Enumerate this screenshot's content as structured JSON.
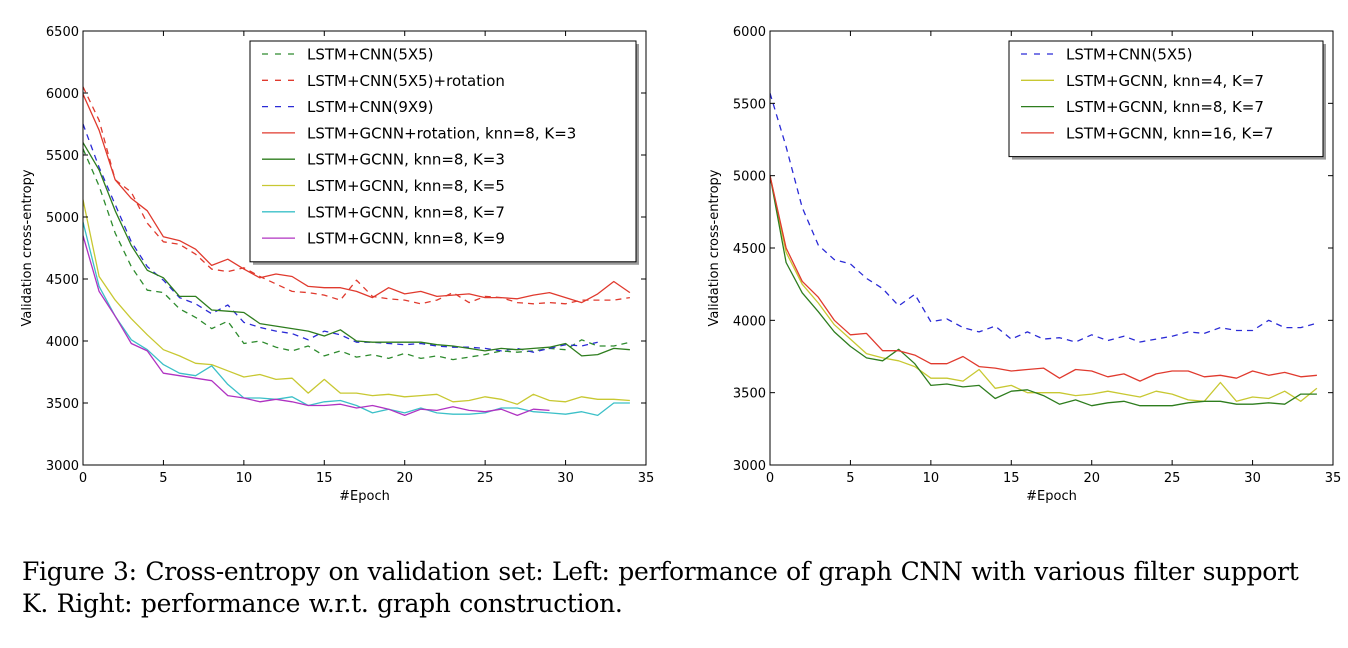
{
  "caption": "Figure 3: Cross-entropy on validation set: Left: performance of graph CNN with various filter support K. Right: performance w.r.t. graph construction.",
  "chart_data": [
    {
      "type": "line",
      "xlabel": "#Epoch",
      "ylabel": "Validation cross-entropy",
      "xlim": [
        0,
        35
      ],
      "ylim": [
        3000,
        6500
      ],
      "xticks": [
        0,
        5,
        10,
        15,
        20,
        25,
        30,
        35
      ],
      "yticks": [
        3000,
        3500,
        4000,
        4500,
        5000,
        5500,
        6000,
        6500
      ],
      "grid": false,
      "legend_position": "top-right",
      "series": [
        {
          "name": "LSTM+CNN(5X5)",
          "color": "#2e8b2e",
          "dash": true,
          "x": [
            0,
            1,
            2,
            3,
            4,
            5,
            6,
            7,
            8,
            9,
            10,
            11,
            12,
            13,
            14,
            15,
            16,
            17,
            18,
            19,
            20,
            21,
            22,
            23,
            24,
            25,
            26,
            27,
            28,
            29,
            30,
            31,
            32,
            33,
            34
          ],
          "y": [
            5550,
            5250,
            4870,
            4600,
            4410,
            4390,
            4260,
            4190,
            4100,
            4160,
            3980,
            4000,
            3950,
            3920,
            3960,
            3880,
            3920,
            3870,
            3890,
            3860,
            3900,
            3860,
            3880,
            3850,
            3870,
            3890,
            3920,
            3910,
            3920,
            3940,
            3930,
            4010,
            3960,
            3960,
            3990
          ]
        },
        {
          "name": "LSTM+CNN(5X5)+rotation",
          "color": "#e03a2e",
          "dash": true,
          "x": [
            0,
            1,
            2,
            3,
            4,
            5,
            6,
            7,
            8,
            9,
            10,
            11,
            12,
            13,
            14,
            15,
            16,
            17,
            18,
            19,
            20,
            21,
            22,
            23,
            24,
            25,
            26,
            27,
            28,
            29,
            30,
            31,
            32,
            33,
            34
          ],
          "y": [
            6050,
            5780,
            5300,
            5200,
            4950,
            4800,
            4780,
            4700,
            4580,
            4560,
            4590,
            4520,
            4460,
            4400,
            4390,
            4370,
            4330,
            4490,
            4360,
            4340,
            4330,
            4300,
            4330,
            4390,
            4310,
            4360,
            4350,
            4310,
            4300,
            4310,
            4300,
            4330,
            4330,
            4330,
            4350
          ]
        },
        {
          "name": "LSTM+CNN(9X9)",
          "color": "#2b2bd6",
          "dash": true,
          "x": [
            0,
            1,
            2,
            3,
            4,
            5,
            6,
            7,
            8,
            9,
            10,
            11,
            12,
            13,
            14,
            15,
            16,
            17,
            18,
            19,
            20,
            21,
            22,
            23,
            24,
            25,
            26,
            27,
            28,
            29,
            30,
            31,
            32
          ],
          "y": [
            5750,
            5400,
            5100,
            4800,
            4600,
            4490,
            4350,
            4300,
            4220,
            4290,
            4150,
            4110,
            4080,
            4060,
            4010,
            4080,
            4050,
            3990,
            3990,
            3980,
            3970,
            3980,
            3960,
            3950,
            3950,
            3940,
            3920,
            3940,
            3910,
            3940,
            3970,
            3960,
            3990
          ]
        },
        {
          "name": "LSTM+GCNN+rotation, knn=8, K=3",
          "color": "#e03a2e",
          "dash": false,
          "x": [
            0,
            1,
            2,
            3,
            4,
            5,
            6,
            7,
            8,
            9,
            10,
            11,
            12,
            13,
            14,
            15,
            16,
            17,
            18,
            19,
            20,
            21,
            22,
            23,
            24,
            25,
            26,
            27,
            28,
            29,
            30,
            31,
            32,
            33,
            34
          ],
          "y": [
            5990,
            5700,
            5300,
            5150,
            5050,
            4840,
            4810,
            4740,
            4610,
            4660,
            4580,
            4510,
            4540,
            4520,
            4440,
            4430,
            4430,
            4400,
            4350,
            4430,
            4380,
            4400,
            4360,
            4370,
            4380,
            4350,
            4350,
            4340,
            4370,
            4390,
            4350,
            4310,
            4380,
            4480,
            4390
          ]
        },
        {
          "name": "LSTM+GCNN, knn=8, K=3",
          "color": "#2e7d1e",
          "dash": false,
          "x": [
            0,
            1,
            2,
            3,
            4,
            5,
            6,
            7,
            8,
            9,
            10,
            11,
            12,
            13,
            14,
            15,
            16,
            17,
            18,
            19,
            20,
            21,
            22,
            23,
            24,
            25,
            26,
            27,
            28,
            29,
            30,
            31,
            32,
            33,
            34
          ],
          "y": [
            5600,
            5380,
            5050,
            4770,
            4570,
            4510,
            4360,
            4360,
            4250,
            4240,
            4230,
            4140,
            4120,
            4100,
            4080,
            4040,
            4090,
            4000,
            3990,
            3990,
            3990,
            3990,
            3970,
            3960,
            3940,
            3920,
            3940,
            3930,
            3940,
            3950,
            3980,
            3880,
            3890,
            3940,
            3930
          ]
        },
        {
          "name": "LSTM+GCNN, knn=8, K=5",
          "color": "#c8c832",
          "dash": false,
          "x": [
            0,
            1,
            2,
            3,
            4,
            5,
            6,
            7,
            8,
            9,
            10,
            11,
            12,
            13,
            14,
            15,
            16,
            17,
            18,
            19,
            20,
            21,
            22,
            23,
            24,
            25,
            26,
            27,
            28,
            29,
            30,
            31,
            32,
            33,
            34
          ],
          "y": [
            5140,
            4520,
            4330,
            4180,
            4050,
            3930,
            3880,
            3820,
            3810,
            3760,
            3710,
            3730,
            3690,
            3700,
            3580,
            3690,
            3580,
            3580,
            3560,
            3570,
            3550,
            3560,
            3570,
            3510,
            3520,
            3550,
            3530,
            3490,
            3570,
            3520,
            3510,
            3550,
            3530,
            3530,
            3520
          ]
        },
        {
          "name": "LSTM+GCNN, knn=8, K=7",
          "color": "#3cc0c8",
          "dash": false,
          "x": [
            0,
            1,
            2,
            3,
            4,
            5,
            6,
            7,
            8,
            9,
            10,
            11,
            12,
            13,
            14,
            15,
            16,
            17,
            18,
            19,
            20,
            21,
            22,
            23,
            24,
            25,
            26,
            27,
            28,
            29,
            30,
            31,
            32,
            33,
            34
          ],
          "y": [
            4960,
            4440,
            4200,
            4010,
            3930,
            3810,
            3740,
            3720,
            3800,
            3650,
            3540,
            3540,
            3530,
            3550,
            3480,
            3510,
            3520,
            3480,
            3420,
            3450,
            3420,
            3460,
            3420,
            3410,
            3410,
            3420,
            3460,
            3460,
            3430,
            3420,
            3410,
            3430,
            3400,
            3500,
            3500
          ]
        },
        {
          "name": "LSTM+GCNN, knn=8, K=9",
          "color": "#b033c2",
          "dash": false,
          "x": [
            0,
            1,
            2,
            3,
            4,
            5,
            6,
            7,
            8,
            9,
            10,
            11,
            12,
            13,
            14,
            15,
            16,
            17,
            18,
            19,
            20,
            21,
            22,
            23,
            24,
            25,
            26,
            27,
            28,
            29
          ],
          "y": [
            4850,
            4400,
            4200,
            3980,
            3920,
            3740,
            3720,
            3700,
            3680,
            3560,
            3540,
            3510,
            3530,
            3510,
            3480,
            3480,
            3490,
            3460,
            3480,
            3450,
            3400,
            3450,
            3440,
            3470,
            3440,
            3430,
            3450,
            3400,
            3450,
            3440
          ]
        }
      ]
    },
    {
      "type": "line",
      "xlabel": "#Epoch",
      "ylabel": "Validation cross-entropy",
      "xlim": [
        0,
        35
      ],
      "ylim": [
        3000,
        6000
      ],
      "xticks": [
        0,
        5,
        10,
        15,
        20,
        25,
        30,
        35
      ],
      "yticks": [
        3000,
        3500,
        4000,
        4500,
        5000,
        5500,
        6000
      ],
      "grid": false,
      "legend_position": "top-right",
      "series": [
        {
          "name": "LSTM+CNN(5X5)",
          "color": "#2b2bd6",
          "dash": true,
          "x": [
            0,
            1,
            2,
            3,
            4,
            5,
            6,
            7,
            8,
            9,
            10,
            11,
            12,
            13,
            14,
            15,
            16,
            17,
            18,
            19,
            20,
            21,
            22,
            23,
            24,
            25,
            26,
            27,
            28,
            29,
            30,
            31,
            32,
            33,
            34
          ],
          "y": [
            5570,
            5200,
            4780,
            4520,
            4420,
            4390,
            4290,
            4220,
            4100,
            4180,
            3990,
            4010,
            3950,
            3920,
            3960,
            3870,
            3920,
            3870,
            3880,
            3850,
            3900,
            3860,
            3890,
            3850,
            3870,
            3890,
            3920,
            3910,
            3950,
            3930,
            3930,
            4000,
            3950,
            3950,
            3980
          ]
        },
        {
          "name": "LSTM+GCNN, knn=4, K=7",
          "color": "#c8c832",
          "dash": false,
          "x": [
            0,
            1,
            2,
            3,
            4,
            5,
            6,
            7,
            8,
            9,
            10,
            11,
            12,
            13,
            14,
            15,
            16,
            17,
            18,
            19,
            20,
            21,
            22,
            23,
            24,
            25,
            26,
            27,
            28,
            29,
            30,
            31,
            32,
            33,
            34
          ],
          "y": [
            5000,
            4470,
            4250,
            4120,
            3970,
            3870,
            3770,
            3740,
            3720,
            3680,
            3600,
            3600,
            3580,
            3660,
            3530,
            3550,
            3500,
            3500,
            3500,
            3480,
            3490,
            3510,
            3490,
            3470,
            3510,
            3490,
            3450,
            3440,
            3570,
            3440,
            3470,
            3460,
            3510,
            3440,
            3530
          ]
        },
        {
          "name": "LSTM+GCNN, knn=8, K=7",
          "color": "#2e7d1e",
          "dash": false,
          "x": [
            0,
            1,
            2,
            3,
            4,
            5,
            6,
            7,
            8,
            9,
            10,
            11,
            12,
            13,
            14,
            15,
            16,
            17,
            18,
            19,
            20,
            21,
            22,
            23,
            24,
            25,
            26,
            27,
            28,
            29,
            30,
            31,
            32,
            33,
            34
          ],
          "y": [
            5000,
            4400,
            4190,
            4060,
            3920,
            3820,
            3740,
            3720,
            3800,
            3700,
            3550,
            3560,
            3540,
            3550,
            3460,
            3510,
            3520,
            3480,
            3420,
            3450,
            3410,
            3430,
            3440,
            3410,
            3410,
            3410,
            3430,
            3440,
            3440,
            3420,
            3420,
            3430,
            3420,
            3490,
            3490
          ]
        },
        {
          "name": "LSTM+GCNN, knn=16, K=7",
          "color": "#e03a2e",
          "dash": false,
          "x": [
            0,
            1,
            2,
            3,
            4,
            5,
            6,
            7,
            8,
            9,
            10,
            11,
            12,
            13,
            14,
            15,
            16,
            17,
            18,
            19,
            20,
            21,
            22,
            23,
            24,
            25,
            26,
            27,
            28,
            29,
            30,
            31,
            32,
            33,
            34
          ],
          "y": [
            5000,
            4500,
            4270,
            4160,
            4000,
            3900,
            3910,
            3790,
            3790,
            3760,
            3700,
            3700,
            3750,
            3680,
            3670,
            3650,
            3660,
            3670,
            3600,
            3660,
            3650,
            3610,
            3630,
            3580,
            3630,
            3650,
            3650,
            3610,
            3620,
            3600,
            3650,
            3620,
            3640,
            3610,
            3620
          ]
        }
      ]
    }
  ]
}
